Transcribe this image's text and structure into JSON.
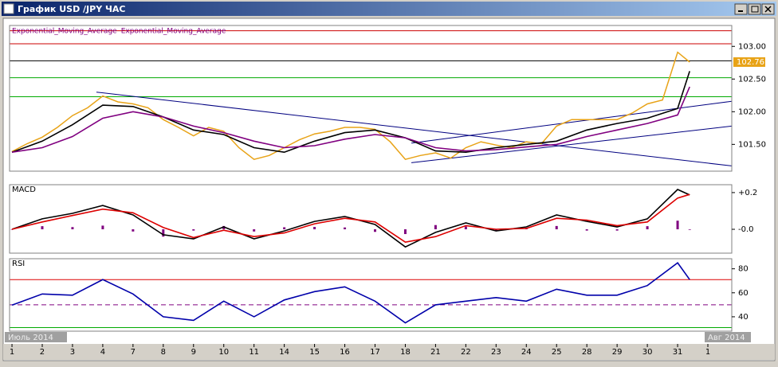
{
  "window": {
    "title": "График USD /JPY ЧАС"
  },
  "x_axis": {
    "xlim": [
      -0.08,
      23.79
    ],
    "xticks": [
      {
        "value": 0,
        "label": "1"
      },
      {
        "value": 1,
        "label": "2"
      },
      {
        "value": 2,
        "label": "3"
      },
      {
        "value": 3,
        "label": "4"
      },
      {
        "value": 4,
        "label": "7"
      },
      {
        "value": 5,
        "label": "8"
      },
      {
        "value": 6,
        "label": "9"
      },
      {
        "value": 7,
        "label": "10"
      },
      {
        "value": 8,
        "label": "11"
      },
      {
        "value": 9,
        "label": "14"
      },
      {
        "value": 10,
        "label": "15"
      },
      {
        "value": 11,
        "label": "16"
      },
      {
        "value": 12,
        "label": "17"
      },
      {
        "value": 13,
        "label": "18"
      },
      {
        "value": 14,
        "label": "21"
      },
      {
        "value": 15,
        "label": "22"
      },
      {
        "value": 16,
        "label": "23"
      },
      {
        "value": 17,
        "label": "24"
      },
      {
        "value": 18,
        "label": "25"
      },
      {
        "value": 19,
        "label": "28"
      },
      {
        "value": 20,
        "label": "29"
      },
      {
        "value": 21,
        "label": "30"
      },
      {
        "value": 22,
        "label": "31"
      },
      {
        "value": 23,
        "label": "1"
      }
    ],
    "month_labels": [
      "Июль 2014",
      "Авг 2014"
    ]
  },
  "chart_data": [
    {
      "type": "line",
      "last_price_label": "102.76",
      "ylim": [
        101.09,
        103.32
      ],
      "yticks": [
        {
          "value": 103,
          "label": "103.00"
        },
        {
          "value": 102.5,
          "label": "102.50"
        },
        {
          "value": 102,
          "label": "102.00"
        },
        {
          "value": 101.5,
          "label": "101.50"
        }
      ],
      "hlines": [
        {
          "value": 103.24,
          "color": "#cc0000"
        },
        {
          "value": 103.04,
          "color": "#cc0000"
        },
        {
          "value": 102.78,
          "color": "#000000"
        },
        {
          "value": 102.52,
          "color": "#00aa00"
        },
        {
          "value": 102.23,
          "color": "#00aa00"
        }
      ],
      "trendlines": [
        {
          "x": [
            2.79,
            23.79
          ],
          "y": [
            102.3,
            101.17
          ],
          "color": "#000080"
        },
        {
          "x": [
            13.2,
            23.79
          ],
          "y": [
            101.22,
            101.78
          ],
          "color": "#000080"
        },
        {
          "x": [
            13.2,
            23.79
          ],
          "y": [
            101.52,
            102.16
          ],
          "color": "#000080"
        }
      ],
      "series": [
        {
          "color": "#e8a317",
          "x": [
            0,
            0.5,
            1,
            1.5,
            2,
            2.5,
            3,
            3.5,
            4,
            4.5,
            5,
            5.5,
            6,
            6.5,
            7,
            7.5,
            8,
            8.5,
            9,
            9.5,
            10,
            10.5,
            11,
            11.5,
            12,
            12.5,
            13,
            13.5,
            14,
            14.5,
            15,
            15.5,
            16,
            16.5,
            17,
            17.5,
            18,
            18.5,
            19,
            19.5,
            20,
            20.5,
            21,
            21.5,
            22,
            22.4
          ],
          "values": [
            101.39,
            101.51,
            101.61,
            101.76,
            101.94,
            102.06,
            102.24,
            102.15,
            102.12,
            102.06,
            101.88,
            101.76,
            101.63,
            101.76,
            101.7,
            101.45,
            101.27,
            101.33,
            101.45,
            101.57,
            101.66,
            101.7,
            101.76,
            101.76,
            101.73,
            101.54,
            101.27,
            101.33,
            101.37,
            101.29,
            101.45,
            101.54,
            101.49,
            101.45,
            101.54,
            101.51,
            101.78,
            101.88,
            101.88,
            101.88,
            101.88,
            101.98,
            102.12,
            102.18,
            102.91,
            102.76
          ]
        },
        {
          "name": "Exponential_Moving_Average",
          "color": "#000000",
          "x": [
            0,
            1,
            2,
            3,
            4,
            5,
            6,
            7,
            8,
            9,
            10,
            11,
            12,
            13,
            14,
            15,
            16,
            17,
            18,
            19,
            20,
            21,
            22,
            22.4
          ],
          "values": [
            101.38,
            101.55,
            101.8,
            102.1,
            102.08,
            101.92,
            101.72,
            101.65,
            101.45,
            101.38,
            101.55,
            101.68,
            101.72,
            101.6,
            101.4,
            101.38,
            101.45,
            101.5,
            101.55,
            101.72,
            101.82,
            101.9,
            102.05,
            102.62
          ]
        },
        {
          "name": "Exponential_Moving_Average",
          "color": "#800080",
          "x": [
            0,
            1,
            2,
            3,
            4,
            5,
            6,
            7,
            8,
            9,
            10,
            11,
            12,
            13,
            14,
            15,
            16,
            17,
            18,
            19,
            20,
            21,
            22,
            22.4
          ],
          "values": [
            101.38,
            101.45,
            101.62,
            101.9,
            102.0,
            101.92,
            101.78,
            101.68,
            101.55,
            101.45,
            101.48,
            101.58,
            101.65,
            101.6,
            101.45,
            101.4,
            101.42,
            101.46,
            101.5,
            101.62,
            101.72,
            101.82,
            101.95,
            102.38
          ]
        }
      ]
    },
    {
      "type": "line",
      "title": "MACD",
      "ylim": [
        -0.13,
        0.243
      ],
      "yticks": [
        {
          "value": 0.2,
          "label": "+0.2"
        },
        {
          "value": 0,
          "label": "-0.0"
        }
      ],
      "series": [
        {
          "type": "bar",
          "color": "#800080",
          "x": [
            0,
            1,
            2,
            3,
            4,
            5,
            6,
            7,
            8,
            9,
            10,
            11,
            12,
            13,
            14,
            15,
            16,
            17,
            18,
            19,
            20,
            21,
            22,
            22.4
          ],
          "values": [
            0,
            0.017,
            0.012,
            0.02,
            -0.012,
            -0.04,
            -0.007,
            0.018,
            -0.012,
            0.011,
            0.013,
            0.01,
            -0.014,
            -0.026,
            0.023,
            0.015,
            -0.009,
            0.008,
            0.018,
            -0.007,
            -0.007,
            0.017,
            0.047,
            -0.003
          ]
        },
        {
          "color": "#000000",
          "x": [
            0,
            1,
            2,
            3,
            4,
            5,
            6,
            7,
            8,
            9,
            10,
            11,
            12,
            13,
            14,
            15,
            16,
            17,
            18,
            19,
            20,
            21,
            22,
            22.4
          ],
          "values": [
            0,
            0.057,
            0.087,
            0.13,
            0.078,
            -0.03,
            -0.052,
            0.013,
            -0.052,
            -0.009,
            0.043,
            0.07,
            0.026,
            -0.096,
            -0.017,
            0.035,
            -0.009,
            0.013,
            0.078,
            0.043,
            0.013,
            0.057,
            0.217,
            0.187
          ]
        },
        {
          "color": "#dd0000",
          "x": [
            0,
            1,
            2,
            3,
            4,
            5,
            6,
            7,
            8,
            9,
            10,
            11,
            12,
            13,
            14,
            15,
            16,
            17,
            18,
            19,
            20,
            21,
            22,
            22.4
          ],
          "values": [
            0,
            0.04,
            0.075,
            0.11,
            0.09,
            0.01,
            -0.045,
            -0.005,
            -0.04,
            -0.02,
            0.03,
            0.06,
            0.04,
            -0.07,
            -0.04,
            0.02,
            0,
            0.005,
            0.06,
            0.05,
            0.02,
            0.04,
            0.17,
            0.19
          ]
        }
      ]
    },
    {
      "type": "line",
      "title": "RSI",
      "ylim": [
        28,
        88.4
      ],
      "yticks": [
        80,
        60,
        40
      ],
      "hlines": [
        {
          "value": 71,
          "color": "#dd0000"
        },
        {
          "value": 50,
          "color": "#800080",
          "dash": true
        },
        {
          "value": 31,
          "color": "#00aa00"
        }
      ],
      "series": [
        {
          "color": "#0000aa",
          "x": [
            0,
            1,
            2,
            3,
            4,
            5,
            6,
            7,
            8,
            9,
            10,
            11,
            12,
            13,
            14,
            15,
            16,
            17,
            18,
            19,
            20,
            21,
            22,
            22.4
          ],
          "values": [
            49.7,
            59,
            58,
            71,
            59,
            40,
            37,
            53,
            40,
            54,
            61,
            65,
            53,
            35,
            50,
            53,
            56,
            53,
            63,
            58,
            58,
            66,
            85,
            71
          ]
        }
      ]
    }
  ]
}
